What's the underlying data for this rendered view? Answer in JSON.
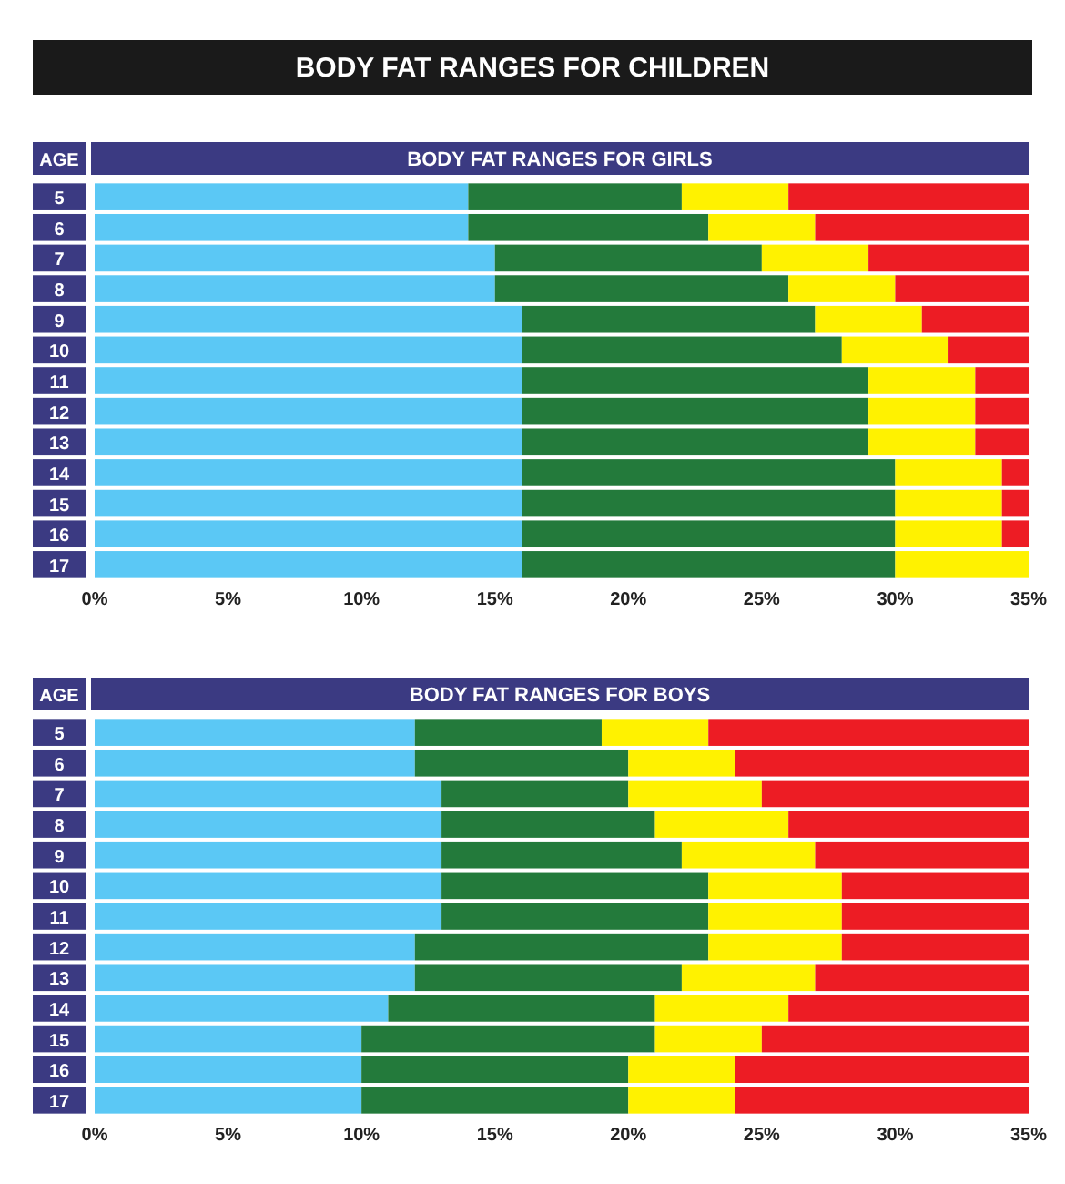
{
  "chart_data": [
    {
      "type": "bar",
      "title": "BODY FAT RANGES FOR CHILDREN",
      "subtitle": "BODY FAT RANGES FOR GIRLS",
      "ylabel": "AGE",
      "orientation": "horizontal",
      "stacked": true,
      "categories": [
        "5",
        "6",
        "7",
        "8",
        "9",
        "10",
        "11",
        "12",
        "13",
        "14",
        "15",
        "16",
        "17"
      ],
      "series": [
        {
          "color": "#5bc8f5",
          "values": [
            14,
            14,
            15,
            15,
            16,
            16,
            16,
            16,
            16,
            16,
            16,
            16,
            16
          ]
        },
        {
          "color": "#237a3b",
          "values": [
            8,
            9,
            10,
            11,
            11,
            12,
            13,
            13,
            13,
            14,
            14,
            14,
            14
          ]
        },
        {
          "color": "#fff200",
          "values": [
            4,
            4,
            4,
            4,
            4,
            4,
            4,
            4,
            4,
            4,
            4,
            4,
            5
          ]
        },
        {
          "color": "#ed1c24",
          "values": [
            9,
            8,
            6,
            5,
            4,
            3,
            2,
            2,
            2,
            1,
            1,
            1,
            0
          ]
        }
      ],
      "xlim": [
        0,
        35
      ],
      "xticks": [
        {
          "value": 0,
          "label": "0%"
        },
        {
          "value": 5,
          "label": "5%"
        },
        {
          "value": 10,
          "label": "10%"
        },
        {
          "value": 15,
          "label": "15%"
        },
        {
          "value": 20,
          "label": "20%"
        },
        {
          "value": 25,
          "label": "25%"
        },
        {
          "value": 30,
          "label": "30%"
        },
        {
          "value": 35,
          "label": "35%"
        }
      ]
    },
    {
      "type": "bar",
      "title": "BODY FAT RANGES FOR BOYS",
      "ylabel": "AGE",
      "orientation": "horizontal",
      "stacked": true,
      "categories": [
        "5",
        "6",
        "7",
        "8",
        "9",
        "10",
        "11",
        "12",
        "13",
        "14",
        "15",
        "16",
        "17"
      ],
      "series": [
        {
          "color": "#5bc8f5",
          "values": [
            12,
            12,
            13,
            13,
            13,
            13,
            13,
            12,
            12,
            11,
            10,
            10,
            10
          ]
        },
        {
          "color": "#237a3b",
          "values": [
            7,
            8,
            7,
            8,
            9,
            10,
            10,
            11,
            10,
            10,
            11,
            10,
            10
          ]
        },
        {
          "color": "#fff200",
          "values": [
            4,
            4,
            5,
            5,
            5,
            5,
            5,
            5,
            5,
            5,
            4,
            4,
            4
          ]
        },
        {
          "color": "#ed1c24",
          "values": [
            12,
            11,
            10,
            9,
            8,
            7,
            7,
            7,
            8,
            9,
            10,
            11,
            11
          ]
        }
      ],
      "xlim": [
        0,
        35
      ],
      "xticks": [
        {
          "value": 0,
          "label": "0%"
        },
        {
          "value": 5,
          "label": "5%"
        },
        {
          "value": 10,
          "label": "10%"
        },
        {
          "value": 15,
          "label": "15%"
        },
        {
          "value": 20,
          "label": "20%"
        },
        {
          "value": 25,
          "label": "25%"
        },
        {
          "value": 30,
          "label": "30%"
        },
        {
          "value": 35,
          "label": "35%"
        }
      ]
    }
  ]
}
